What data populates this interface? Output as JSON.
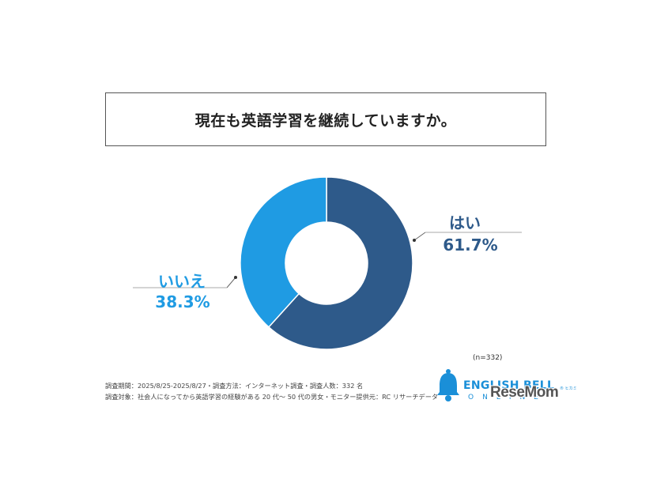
{
  "chart_data": {
    "type": "pie",
    "title": "現在も英語学習を継続していますか。",
    "slices": [
      {
        "label": "はい",
        "value": 61.7,
        "value_label": "61.7%",
        "color": "#2e5a8a"
      },
      {
        "label": "いいえ",
        "value": 38.3,
        "value_label": "38.3%",
        "color": "#1f9be3"
      }
    ],
    "donut": true,
    "sample_size": "(n=332)"
  },
  "footnotes": {
    "line1": "調査期間：2025/8/25-2025/8/27・調査方法：インターネット調査・調査人数：332 名",
    "line2": "調査対象：社会人になってから英語学習の経験がある 20 代〜 50 代の男女・モニター提供元：RC リサーチデータ"
  },
  "logo": {
    "name": "ENGLISH BELL",
    "sub": "ONLINE",
    "tm": "® ヒカミ"
  },
  "watermark": "ReseMom"
}
